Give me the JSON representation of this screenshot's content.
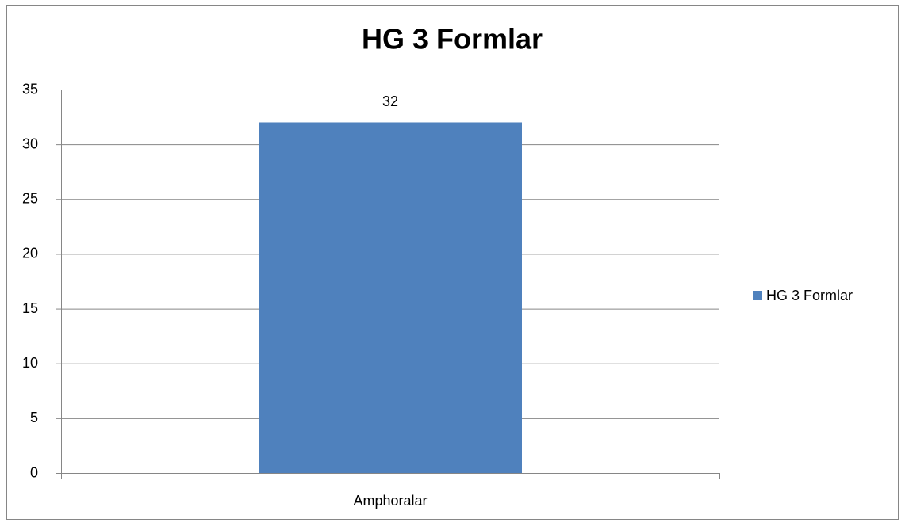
{
  "chart_data": {
    "type": "bar",
    "title": "HG 3 Formlar",
    "categories": [
      "Amphoralar"
    ],
    "series": [
      {
        "name": "HG 3 Formlar",
        "color": "#4f81bd",
        "values": [
          32
        ]
      }
    ],
    "ylim": [
      0,
      35
    ],
    "yticks": [
      0,
      5,
      10,
      15,
      20,
      25,
      30,
      35
    ],
    "grid": true,
    "legend": "right"
  }
}
